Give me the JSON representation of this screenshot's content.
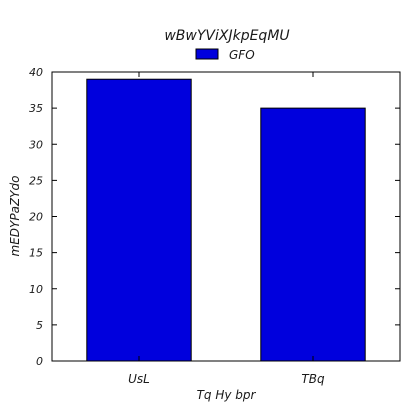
{
  "chart_data": {
    "type": "bar",
    "title": "wBwYViXJkpEqMU",
    "xlabel": "Tq Hy bpr",
    "ylabel": "mEDYPaZYdo",
    "categories": [
      "UsL",
      "TBq"
    ],
    "series": [
      {
        "name": "GFO",
        "values": [
          39,
          35
        ],
        "color": "#0000dd"
      }
    ],
    "ylim": [
      0,
      40
    ],
    "yticks": [
      0,
      5,
      10,
      15,
      20,
      25,
      30,
      35,
      40
    ],
    "grid": false,
    "legend": "top-center"
  }
}
